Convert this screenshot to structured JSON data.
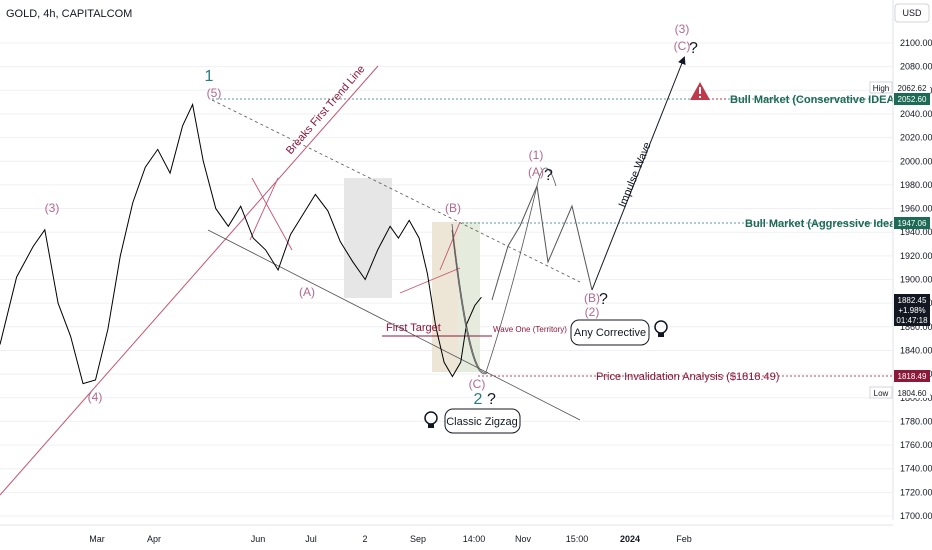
{
  "header": {
    "symbol_title": "GOLD, 4h, CAPITALCOM",
    "currency": "USD"
  },
  "colors": {
    "price_line": "#000000",
    "wave_pink": "#b06a8f",
    "wave_teal": "#2a7a80",
    "maroon": "#8b1a3a",
    "green": "#1d6b56",
    "trend_line": "#c4556f",
    "channel": "#555555",
    "gray_box": "#e6e6e6",
    "beige_box": "#ede6d6",
    "green_box": "#e2ecdf",
    "grid": "#eef0f3"
  },
  "chart_data": {
    "type": "line",
    "symbol": "GOLD",
    "timeframe": "4h",
    "ylabel": "USD",
    "ylim": [
      1690,
      2120
    ],
    "y_ticks": [
      2100,
      2080,
      2060,
      2040,
      2020,
      2000,
      1980,
      1960,
      1940,
      1920,
      1900,
      1880,
      1860,
      1840,
      1820,
      1800,
      1780,
      1760,
      1740,
      1720,
      1700
    ],
    "x_ticks": [
      "Mar",
      "Apr",
      "Jun",
      "Jul",
      "2",
      "Sep",
      "14:00",
      "Nov",
      "15:00",
      "2024",
      "Feb"
    ],
    "series": [
      {
        "name": "GOLD",
        "points": [
          [
            0.0,
            1845
          ],
          [
            0.02,
            1902
          ],
          [
            0.04,
            1928
          ],
          [
            0.054,
            1942
          ],
          [
            0.07,
            1880
          ],
          [
            0.085,
            1852
          ],
          [
            0.1,
            1812
          ],
          [
            0.115,
            1815
          ],
          [
            0.13,
            1858
          ],
          [
            0.145,
            1920
          ],
          [
            0.16,
            1965
          ],
          [
            0.175,
            1995
          ],
          [
            0.19,
            2010
          ],
          [
            0.205,
            1990
          ],
          [
            0.22,
            2030
          ],
          [
            0.232,
            2048
          ],
          [
            0.245,
            2000
          ],
          [
            0.26,
            1960
          ],
          [
            0.275,
            1945
          ],
          [
            0.29,
            1962
          ],
          [
            0.305,
            1935
          ],
          [
            0.32,
            1925
          ],
          [
            0.335,
            1908
          ],
          [
            0.35,
            1938
          ],
          [
            0.365,
            1955
          ],
          [
            0.38,
            1972
          ],
          [
            0.395,
            1958
          ],
          [
            0.41,
            1932
          ],
          [
            0.425,
            1915
          ],
          [
            0.44,
            1900
          ],
          [
            0.455,
            1925
          ],
          [
            0.47,
            1945
          ],
          [
            0.48,
            1935
          ],
          [
            0.493,
            1950
          ],
          [
            0.505,
            1935
          ],
          [
            0.515,
            1905
          ],
          [
            0.525,
            1860
          ],
          [
            0.535,
            1830
          ],
          [
            0.545,
            1818
          ],
          [
            0.555,
            1830
          ],
          [
            0.562,
            1862
          ],
          [
            0.572,
            1878
          ],
          [
            0.58,
            1885
          ]
        ]
      }
    ],
    "price_labels": [
      {
        "label": "High",
        "value": "2062.62"
      },
      {
        "label": "",
        "value": "2052.60"
      },
      {
        "label": "",
        "value": "1947.06"
      },
      {
        "label": "",
        "value": "1882.45"
      },
      {
        "label": "",
        "value": "+1.98%"
      },
      {
        "label": "",
        "value": "01:47:18"
      },
      {
        "label": "",
        "value": "1818.49"
      },
      {
        "label": "Low",
        "value": "1804.60"
      }
    ],
    "annotations": {
      "wave_labels": [
        "1",
        "(5)",
        "(3)",
        "(4)",
        "(A)",
        "(B)",
        "(C)",
        "2",
        "(1)",
        "(A)",
        "(B)",
        "(2)",
        "(3)",
        "(C)"
      ],
      "breaks_trend_line": "Breaks First Trend Line",
      "impulse_wave": "Impulse Wave",
      "first_target": "First Target",
      "wave_one_territory": "Wave One (Territory)",
      "any_corrective": "Any Corrective",
      "classic_zigzag": "Classic Zigzag",
      "bull_conservative": "Bull Market (Conservative IDEA)",
      "bull_aggressive": "Bull Market (Aggressive Idea)",
      "price_invalidation": "Price Invalidation Analysis ($1818.49)",
      "question_mark": "?"
    }
  }
}
